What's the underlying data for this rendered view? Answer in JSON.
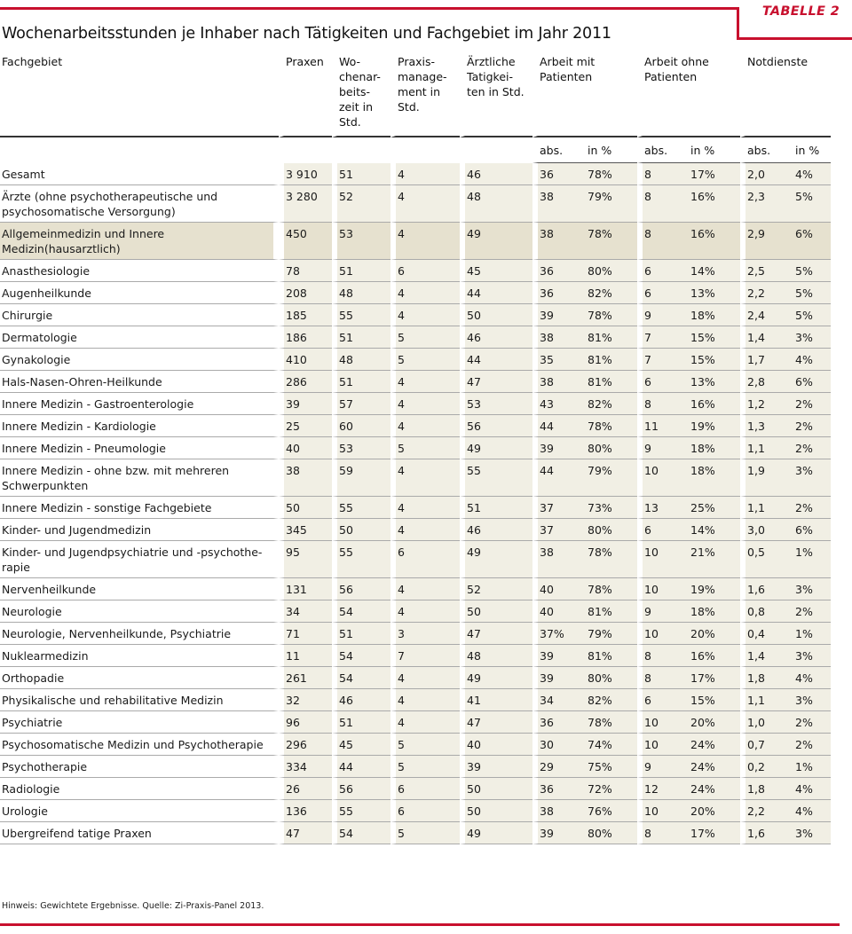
{
  "tag": "TABELLE 2",
  "title": "Wochenarbeitsstunden je Inhaber nach Tätigkeiten und Fachgebiet im Jahr 2011",
  "headers": {
    "fachgebiet": "Fachgebiet",
    "praxen": "Praxen",
    "wochenarbeitszeit": "Wo-\nchenar-\nbeits-\nzeit in\nStd.",
    "praxismanagement": "Praxis-\nmanage-\nment in\nStd.",
    "aerztliche": "Ärztliche\nTatigkei-\nten in Std.",
    "mit_patienten": "Arbeit mit\nPatienten",
    "ohne_patienten": "Arbeit ohne\nPatienten",
    "notdienste": "Notdienste",
    "abs": "abs.",
    "pct": "in %"
  },
  "rows": [
    {
      "name": "Gesamt",
      "praxen": "3 910",
      "woch": "51",
      "pm": "4",
      "aerzt": "46",
      "mit_abs": "36",
      "mit_pct": "78%",
      "ohne_abs": "8",
      "ohne_pct": "17%",
      "not_abs": "2,0",
      "not_pct": "4%"
    },
    {
      "name": "Ärzte (ohne psychotherapeutische und psychosomatische Versorgung)",
      "praxen": "3 280",
      "woch": "52",
      "pm": "4",
      "aerzt": "48",
      "mit_abs": "38",
      "mit_pct": "79%",
      "ohne_abs": "8",
      "ohne_pct": "16%",
      "not_abs": "2,3",
      "not_pct": "5%"
    },
    {
      "name": "Allgemeinmedizin und Innere Medizin(hausarztlich)",
      "praxen": "450",
      "woch": "53",
      "pm": "4",
      "aerzt": "49",
      "mit_abs": "38",
      "mit_pct": "78%",
      "ohne_abs": "8",
      "ohne_pct": "16%",
      "not_abs": "2,9",
      "not_pct": "6%",
      "highlight": true
    },
    {
      "name": "Anasthesiologie",
      "praxen": "78",
      "woch": "51",
      "pm": "6",
      "aerzt": "45",
      "mit_abs": "36",
      "mit_pct": "80%",
      "ohne_abs": "6",
      "ohne_pct": "14%",
      "not_abs": "2,5",
      "not_pct": "5%"
    },
    {
      "name": "Augenheilkunde",
      "praxen": "208",
      "woch": "48",
      "pm": "4",
      "aerzt": "44",
      "mit_abs": "36",
      "mit_pct": "82%",
      "ohne_abs": "6",
      "ohne_pct": "13%",
      "not_abs": "2,2",
      "not_pct": "5%"
    },
    {
      "name": "Chirurgie",
      "praxen": "185",
      "woch": "55",
      "pm": "4",
      "aerzt": "50",
      "mit_abs": "39",
      "mit_pct": "78%",
      "ohne_abs": "9",
      "ohne_pct": "18%",
      "not_abs": "2,4",
      "not_pct": "5%"
    },
    {
      "name": "Dermatologie",
      "praxen": "186",
      "woch": "51",
      "pm": "5",
      "aerzt": "46",
      "mit_abs": "38",
      "mit_pct": "81%",
      "ohne_abs": "7",
      "ohne_pct": "15%",
      "not_abs": "1,4",
      "not_pct": "3%"
    },
    {
      "name": "Gynakologie",
      "praxen": "410",
      "woch": "48",
      "pm": "5",
      "aerzt": "44",
      "mit_abs": "35",
      "mit_pct": "81%",
      "ohne_abs": "7",
      "ohne_pct": "15%",
      "not_abs": "1,7",
      "not_pct": "4%"
    },
    {
      "name": "Hals-Nasen-Ohren-Heilkunde",
      "praxen": "286",
      "woch": "51",
      "pm": "4",
      "aerzt": "47",
      "mit_abs": "38",
      "mit_pct": "81%",
      "ohne_abs": "6",
      "ohne_pct": "13%",
      "not_abs": "2,8",
      "not_pct": "6%"
    },
    {
      "name": "Innere Medizin - Gastroenterologie",
      "praxen": "39",
      "woch": "57",
      "pm": "4",
      "aerzt": "53",
      "mit_abs": "43",
      "mit_pct": "82%",
      "ohne_abs": "8",
      "ohne_pct": "16%",
      "not_abs": "1,2",
      "not_pct": "2%"
    },
    {
      "name": "Innere Medizin - Kardiologie",
      "praxen": "25",
      "woch": "60",
      "pm": "4",
      "aerzt": "56",
      "mit_abs": "44",
      "mit_pct": "78%",
      "ohne_abs": "11",
      "ohne_pct": "19%",
      "not_abs": "1,3",
      "not_pct": "2%"
    },
    {
      "name": "Innere Medizin - Pneumologie",
      "praxen": "40",
      "woch": "53",
      "pm": "5",
      "aerzt": "49",
      "mit_abs": "39",
      "mit_pct": "80%",
      "ohne_abs": "9",
      "ohne_pct": "18%",
      "not_abs": "1,1",
      "not_pct": "2%"
    },
    {
      "name": "Innere Medizin - ohne bzw. mit mehreren Schwerpunkten",
      "praxen": "38",
      "woch": "59",
      "pm": "4",
      "aerzt": "55",
      "mit_abs": "44",
      "mit_pct": "79%",
      "ohne_abs": "10",
      "ohne_pct": "18%",
      "not_abs": "1,9",
      "not_pct": "3%"
    },
    {
      "name": "Innere Medizin - sonstige Fachgebiete",
      "praxen": "50",
      "woch": "55",
      "pm": "4",
      "aerzt": "51",
      "mit_abs": "37",
      "mit_pct": "73%",
      "ohne_abs": "13",
      "ohne_pct": "25%",
      "not_abs": "1,1",
      "not_pct": "2%"
    },
    {
      "name": "Kinder- und Jugendmedizin",
      "praxen": "345",
      "woch": "50",
      "pm": "4",
      "aerzt": "46",
      "mit_abs": "37",
      "mit_pct": "80%",
      "ohne_abs": "6",
      "ohne_pct": "14%",
      "not_abs": "3,0",
      "not_pct": "6%"
    },
    {
      "name": "Kinder- und Jugendpsychiatrie und -psychothe-rapie",
      "praxen": "95",
      "woch": "55",
      "pm": "6",
      "aerzt": "49",
      "mit_abs": "38",
      "mit_pct": "78%",
      "ohne_abs": "10",
      "ohne_pct": "21%",
      "not_abs": "0,5",
      "not_pct": "1%"
    },
    {
      "name": "Nervenheilkunde",
      "praxen": "131",
      "woch": "56",
      "pm": "4",
      "aerzt": "52",
      "mit_abs": "40",
      "mit_pct": "78%",
      "ohne_abs": "10",
      "ohne_pct": "19%",
      "not_abs": "1,6",
      "not_pct": "3%"
    },
    {
      "name": "Neurologie",
      "praxen": "34",
      "woch": "54",
      "pm": "4",
      "aerzt": "50",
      "mit_abs": "40",
      "mit_pct": "81%",
      "ohne_abs": "9",
      "ohne_pct": "18%",
      "not_abs": "0,8",
      "not_pct": "2%"
    },
    {
      "name": "Neurologie, Nervenheilkunde, Psychiatrie",
      "praxen": "71",
      "woch": "51",
      "pm": "3",
      "aerzt": "47",
      "mit_abs": "37%",
      "mit_pct": "79%",
      "ohne_abs": "10",
      "ohne_pct": "20%",
      "not_abs": "0,4",
      "not_pct": "1%"
    },
    {
      "name": "Nuklearmedizin",
      "praxen": "11",
      "woch": "54",
      "pm": "7",
      "aerzt": "48",
      "mit_abs": "39",
      "mit_pct": "81%",
      "ohne_abs": "8",
      "ohne_pct": "16%",
      "not_abs": "1,4",
      "not_pct": "3%"
    },
    {
      "name": "Orthopadie",
      "praxen": "261",
      "woch": "54",
      "pm": "4",
      "aerzt": "49",
      "mit_abs": "39",
      "mit_pct": "80%",
      "ohne_abs": "8",
      "ohne_pct": "17%",
      "not_abs": "1,8",
      "not_pct": "4%"
    },
    {
      "name": "Physikalische und rehabilitative Medizin",
      "praxen": "32",
      "woch": "46",
      "pm": "4",
      "aerzt": "41",
      "mit_abs": "34",
      "mit_pct": "82%",
      "ohne_abs": "6",
      "ohne_pct": "15%",
      "not_abs": "1,1",
      "not_pct": "3%"
    },
    {
      "name": "Psychiatrie",
      "praxen": "96",
      "woch": "51",
      "pm": "4",
      "aerzt": "47",
      "mit_abs": "36",
      "mit_pct": "78%",
      "ohne_abs": "10",
      "ohne_pct": "20%",
      "not_abs": "1,0",
      "not_pct": "2%"
    },
    {
      "name": "Psychosomatische Medizin und Psychotherapie",
      "praxen": "296",
      "woch": "45",
      "pm": "5",
      "aerzt": "40",
      "mit_abs": "30",
      "mit_pct": "74%",
      "ohne_abs": "10",
      "ohne_pct": "24%",
      "not_abs": "0,7",
      "not_pct": "2%"
    },
    {
      "name": "Psychotherapie",
      "praxen": "334",
      "woch": "44",
      "pm": "5",
      "aerzt": "39",
      "mit_abs": "29",
      "mit_pct": "75%",
      "ohne_abs": "9",
      "ohne_pct": "24%",
      "not_abs": "0,2",
      "not_pct": "1%"
    },
    {
      "name": "Radiologie",
      "praxen": "26",
      "woch": "56",
      "pm": "6",
      "aerzt": "50",
      "mit_abs": "36",
      "mit_pct": "72%",
      "ohne_abs": "12",
      "ohne_pct": "24%",
      "not_abs": "1,8",
      "not_pct": "4%"
    },
    {
      "name": "Urologie",
      "praxen": "136",
      "woch": "55",
      "pm": "6",
      "aerzt": "50",
      "mit_abs": "38",
      "mit_pct": "76%",
      "ohne_abs": "10",
      "ohne_pct": "20%",
      "not_abs": "2,2",
      "not_pct": "4%"
    },
    {
      "name": "Ubergreifend tatige Praxen",
      "praxen": "47",
      "woch": "54",
      "pm": "5",
      "aerzt": "49",
      "mit_abs": "39",
      "mit_pct": "80%",
      "ohne_abs": "8",
      "ohne_pct": "17%",
      "not_abs": "1,6",
      "not_pct": "3%"
    }
  ],
  "note": "Hinweis: Gewichtete Ergebnisse. Quelle: Zi-Praxis-Panel 2013.",
  "colors": {
    "accent": "#c8102e",
    "shade": "#f1efe4",
    "highlight": "#e6e1cf"
  }
}
